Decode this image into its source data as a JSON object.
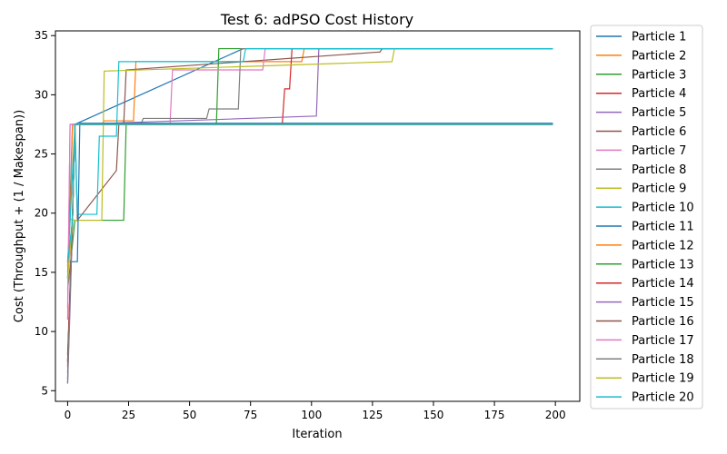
{
  "chart_data": {
    "type": "line",
    "title": "Test 6: adPSO Cost History",
    "xlabel": "Iteration",
    "ylabel": "Cost (Throughput + (1 / Makespan))",
    "xlim": [
      -5,
      210
    ],
    "ylim": [
      4.1,
      35.4
    ],
    "xticks": [
      0,
      25,
      50,
      75,
      100,
      125,
      150,
      175,
      200
    ],
    "yticks": [
      5,
      10,
      15,
      20,
      25,
      30,
      35
    ],
    "grid": false,
    "legend_position": "outside-right",
    "series": [
      {
        "name": "Particle 1",
        "color": "#1f77b4",
        "x": [
          0,
          2,
          3,
          72,
          92,
          93,
          96,
          97,
          199
        ],
        "y": [
          14.5,
          27.5,
          27.5,
          33.9,
          33.9,
          33.9,
          33.9,
          33.9,
          33.9
        ]
      },
      {
        "name": "Particle 2",
        "color": "#ff7f0e",
        "x": [
          0,
          1,
          2,
          14,
          15,
          27,
          28,
          96,
          97,
          199
        ],
        "y": [
          15.5,
          19.4,
          27.5,
          27.5,
          27.8,
          27.8,
          32.8,
          32.8,
          33.9,
          33.9
        ]
      },
      {
        "name": "Particle 3",
        "color": "#2ca02c",
        "x": [
          0,
          3,
          23,
          24,
          61,
          62,
          199
        ],
        "y": [
          13.5,
          19.4,
          19.4,
          27.5,
          27.5,
          33.9,
          33.9
        ]
      },
      {
        "name": "Particle 4",
        "color": "#d62728",
        "x": [
          0,
          1,
          3,
          88,
          89,
          91,
          92,
          199
        ],
        "y": [
          7.4,
          13.5,
          27.5,
          27.5,
          30.5,
          30.5,
          33.9,
          33.9
        ]
      },
      {
        "name": "Particle 5",
        "color": "#9467bd",
        "x": [
          0,
          1,
          2,
          3,
          102,
          103,
          199
        ],
        "y": [
          5.6,
          12.0,
          19.4,
          27.5,
          28.2,
          33.9,
          33.9
        ]
      },
      {
        "name": "Particle 6",
        "color": "#8c564b",
        "x": [
          0,
          2,
          3,
          4,
          20,
          21,
          23,
          24,
          127,
          128,
          129,
          199
        ],
        "y": [
          7.5,
          19.4,
          27.5,
          19.4,
          23.6,
          27.5,
          27.5,
          32.1,
          33.6,
          33.6,
          33.9,
          33.9
        ]
      },
      {
        "name": "Particle 7",
        "color": "#e377c2",
        "x": [
          0,
          1,
          2,
          42,
          43,
          80,
          81,
          199
        ],
        "y": [
          11.0,
          27.5,
          27.5,
          27.5,
          32.1,
          32.1,
          33.9,
          33.9
        ]
      },
      {
        "name": "Particle 8",
        "color": "#7f7f7f",
        "x": [
          0,
          1,
          2,
          3,
          30,
          31,
          57,
          58,
          70,
          71,
          199
        ],
        "y": [
          5.6,
          14.0,
          19.4,
          27.5,
          27.5,
          28.0,
          28.0,
          28.8,
          28.8,
          33.9,
          33.9
        ]
      },
      {
        "name": "Particle 9",
        "color": "#bcbd22",
        "x": [
          0,
          1,
          3,
          14,
          15,
          133,
          134,
          199
        ],
        "y": [
          15.8,
          19.5,
          19.4,
          19.4,
          32.0,
          32.8,
          33.9,
          33.9
        ]
      },
      {
        "name": "Particle 10",
        "color": "#17becf",
        "x": [
          0,
          1,
          3,
          4,
          12,
          13,
          20,
          21,
          72,
          73,
          199
        ],
        "y": [
          15.9,
          19.4,
          27.5,
          19.9,
          19.9,
          26.5,
          26.5,
          32.8,
          32.8,
          33.9,
          33.9
        ]
      },
      {
        "name": "Particle 11",
        "color": "#1f77b4",
        "x": [
          0,
          1,
          3,
          4,
          5,
          199
        ],
        "y": [
          15.9,
          15.9,
          15.9,
          15.9,
          27.6,
          27.6
        ]
      },
      {
        "name": "Particle 12",
        "color": "#ff7f0e",
        "x": [
          0,
          2,
          3,
          199
        ],
        "y": [
          15.5,
          19.4,
          27.5,
          27.5
        ]
      },
      {
        "name": "Particle 13",
        "color": "#2ca02c",
        "x": [
          0,
          2,
          3,
          199
        ],
        "y": [
          15.0,
          19.4,
          27.5,
          27.5
        ]
      },
      {
        "name": "Particle 14",
        "color": "#d62728",
        "x": [
          0,
          2,
          3,
          199
        ],
        "y": [
          8.0,
          19.4,
          27.5,
          27.5
        ]
      },
      {
        "name": "Particle 15",
        "color": "#9467bd",
        "x": [
          0,
          2,
          3,
          199
        ],
        "y": [
          6.5,
          19.4,
          27.5,
          27.5
        ]
      },
      {
        "name": "Particle 16",
        "color": "#8c564b",
        "x": [
          0,
          2,
          3,
          199
        ],
        "y": [
          7.0,
          19.4,
          27.5,
          27.5
        ]
      },
      {
        "name": "Particle 17",
        "color": "#e377c2",
        "x": [
          0,
          1,
          2,
          199
        ],
        "y": [
          12.0,
          27.5,
          27.5,
          27.5
        ]
      },
      {
        "name": "Particle 18",
        "color": "#7f7f7f",
        "x": [
          0,
          2,
          3,
          199
        ],
        "y": [
          6.0,
          19.4,
          27.5,
          27.5
        ]
      },
      {
        "name": "Particle 19",
        "color": "#bcbd22",
        "x": [
          0,
          2,
          3,
          199
        ],
        "y": [
          14.5,
          19.4,
          27.5,
          27.5
        ]
      },
      {
        "name": "Particle 20",
        "color": "#17becf",
        "x": [
          0,
          2,
          3,
          199
        ],
        "y": [
          15.9,
          19.4,
          27.5,
          27.5
        ]
      }
    ]
  }
}
